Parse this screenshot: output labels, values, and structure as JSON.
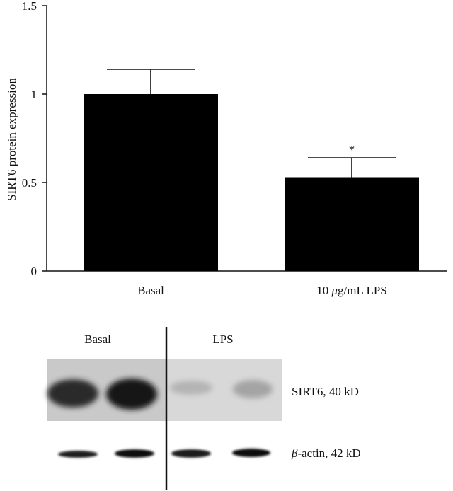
{
  "chart_data": {
    "type": "bar",
    "ylabel": "SIRT6 protein expression",
    "xlabel": "",
    "categories": [
      "Basal",
      "10 μg/mL LPS"
    ],
    "category_labels": [
      {
        "prefix": "Basal",
        "unit_symbol": "",
        "suffix": ""
      },
      {
        "prefix": "10 ",
        "unit_symbol": "μ",
        "suffix": "g/mL LPS"
      }
    ],
    "values": [
      1.0,
      0.53
    ],
    "errors": [
      0.14,
      0.11
    ],
    "significance": [
      "",
      "*"
    ],
    "ylim": [
      0,
      1.5
    ],
    "yticks": [
      0,
      0.5,
      1,
      1.5
    ],
    "ytick_labels": [
      "0",
      "0.5",
      "1",
      "1.5"
    ],
    "bar_color": "#000000",
    "grid": false
  },
  "blot": {
    "group_labels": [
      "Basal",
      "LPS"
    ],
    "bands": [
      {
        "label_prefix": "SIRT6, 40 kD",
        "label_symbol": ""
      },
      {
        "label_prefix": "-actin, 42 kD",
        "label_symbol": "β"
      }
    ]
  }
}
